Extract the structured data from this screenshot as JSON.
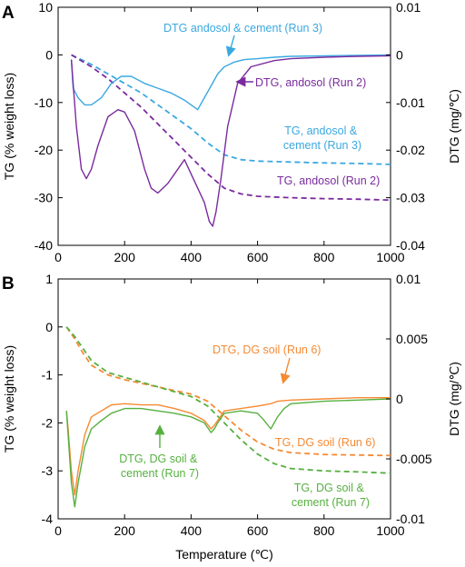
{
  "chart_data": [
    {
      "panel_label": "A",
      "type": "line",
      "xlabel": "",
      "ylabel_left": "TG (% weight loss)",
      "ylabel_right": "DTG (mg/℃)",
      "xlim": [
        0,
        1000
      ],
      "ylim_left": [
        -40,
        10
      ],
      "ylim_right": [
        -0.04,
        0.01
      ],
      "xticks": [
        "0",
        "200",
        "400",
        "600",
        "800",
        "1000"
      ],
      "yticks_left": [
        "10",
        "0",
        "-10",
        "-20",
        "-30",
        "-40"
      ],
      "yticks_right": [
        "0.01",
        "0",
        "-0.01",
        "-0.02",
        "-0.03",
        "-0.04"
      ],
      "grid": false,
      "colors": {
        "blue": "#3aa8e0",
        "purple": "#7a2b9e"
      },
      "annotations": [
        {
          "lines": [
            "DTG andosol & cement (Run 3)"
          ],
          "color": "#3aa8e0"
        },
        {
          "lines": [
            "DTG, andosol (Run 2)"
          ],
          "color": "#7a2b9e"
        },
        {
          "lines": [
            "TG,  andosol  &",
            "cement (Run 3)"
          ],
          "color": "#3aa8e0"
        },
        {
          "lines": [
            "TG, andosol (Run 2)"
          ],
          "color": "#7a2b9e"
        }
      ],
      "series": [
        {
          "kind": "TG",
          "axis": "left",
          "style": "dashed",
          "color": "#3aa8e0",
          "x": [
            40,
            100,
            150,
            200,
            250,
            300,
            350,
            400,
            450,
            500,
            550,
            600,
            700,
            800,
            900,
            1000
          ],
          "y": [
            0,
            -2,
            -4,
            -6,
            -8,
            -10.5,
            -13,
            -15.5,
            -18.5,
            -21,
            -22,
            -22.3,
            -22.5,
            -22.7,
            -22.8,
            -23
          ]
        },
        {
          "kind": "TG",
          "axis": "left",
          "style": "dashed",
          "color": "#7a2b9e",
          "x": [
            40,
            100,
            150,
            200,
            250,
            300,
            350,
            400,
            450,
            500,
            550,
            600,
            700,
            800,
            900,
            1000
          ],
          "y": [
            0,
            -2.5,
            -5,
            -8,
            -11,
            -14.5,
            -18,
            -21.5,
            -25,
            -28,
            -29.2,
            -29.7,
            -30,
            -30.2,
            -30.3,
            -30.5
          ]
        },
        {
          "kind": "DTG",
          "axis": "right",
          "style": "solid",
          "color": "#3aa8e0",
          "x": [
            40,
            45,
            60,
            80,
            100,
            130,
            160,
            190,
            220,
            260,
            300,
            340,
            380,
            420,
            440,
            460,
            480,
            500,
            530,
            560,
            600,
            650,
            700,
            800,
            900,
            1000
          ],
          "y": [
            -0.001,
            -0.007,
            -0.009,
            -0.0105,
            -0.0105,
            -0.009,
            -0.006,
            -0.0045,
            -0.0045,
            -0.006,
            -0.007,
            -0.008,
            -0.0095,
            -0.0115,
            -0.009,
            -0.0065,
            -0.004,
            -0.0025,
            -0.0015,
            -0.001,
            -0.0008,
            -0.0005,
            -0.0003,
            -0.0002,
            -0.0001,
            0
          ]
        },
        {
          "kind": "DTG",
          "axis": "right",
          "style": "solid",
          "color": "#7a2b9e",
          "x": [
            40,
            45,
            55,
            70,
            85,
            100,
            120,
            150,
            180,
            200,
            230,
            260,
            280,
            300,
            330,
            360,
            380,
            400,
            420,
            440,
            455,
            465,
            475,
            490,
            510,
            540,
            580,
            650,
            700,
            800,
            900,
            1000
          ],
          "y": [
            -0.001,
            -0.006,
            -0.015,
            -0.024,
            -0.026,
            -0.024,
            -0.019,
            -0.013,
            -0.0115,
            -0.012,
            -0.016,
            -0.024,
            -0.028,
            -0.029,
            -0.027,
            -0.024,
            -0.022,
            -0.025,
            -0.028,
            -0.031,
            -0.035,
            -0.036,
            -0.033,
            -0.026,
            -0.015,
            -0.006,
            -0.0025,
            -0.0012,
            -0.0008,
            -0.0005,
            -0.0003,
            -0.0002
          ]
        }
      ]
    },
    {
      "panel_label": "B",
      "type": "line",
      "xlabel": "Temperature (℃)",
      "ylabel_left": "TG (% weight loss)",
      "ylabel_right": "DTG (mg/℃)",
      "xlim": [
        0,
        1000
      ],
      "ylim_left": [
        -4,
        1
      ],
      "ylim_right": [
        -0.01,
        0.01
      ],
      "xticks": [
        "0",
        "200",
        "400",
        "600",
        "800",
        "1000"
      ],
      "yticks_left": [
        "1",
        "0",
        "-1",
        "-2",
        "-3",
        "-4"
      ],
      "yticks_right": [
        "0.01",
        "0.005",
        "0",
        "-0.005",
        "-0.01"
      ],
      "grid": false,
      "colors": {
        "orange": "#f58a33",
        "green": "#56b03f"
      },
      "annotations": [
        {
          "lines": [
            "DTG, DG soil (Run 6)"
          ],
          "color": "#f58a33"
        },
        {
          "lines": [
            "TG, DG soil (Run 6)"
          ],
          "color": "#f58a33"
        },
        {
          "lines": [
            "DTG,  DG  soil  &",
            "cement (Run 7)"
          ],
          "color": "#56b03f"
        },
        {
          "lines": [
            "TG,  DG  soil  &",
            "cement (Run 7)"
          ],
          "color": "#56b03f"
        }
      ],
      "series": [
        {
          "kind": "TG",
          "axis": "left",
          "style": "dashed",
          "color": "#f58a33",
          "x": [
            25,
            50,
            75,
            100,
            150,
            200,
            300,
            400,
            450,
            500,
            550,
            600,
            650,
            700,
            800,
            900,
            1000
          ],
          "y": [
            0,
            -0.25,
            -0.55,
            -0.8,
            -1.0,
            -1.1,
            -1.25,
            -1.4,
            -1.55,
            -1.85,
            -2.15,
            -2.4,
            -2.55,
            -2.62,
            -2.66,
            -2.67,
            -2.68
          ]
        },
        {
          "kind": "TG",
          "axis": "left",
          "style": "dashed",
          "color": "#56b03f",
          "x": [
            25,
            50,
            75,
            100,
            150,
            200,
            300,
            400,
            450,
            500,
            550,
            600,
            650,
            700,
            800,
            900,
            1000
          ],
          "y": [
            0,
            -0.2,
            -0.45,
            -0.7,
            -0.95,
            -1.05,
            -1.25,
            -1.45,
            -1.65,
            -2.0,
            -2.35,
            -2.65,
            -2.85,
            -2.95,
            -3.0,
            -3.02,
            -3.05
          ]
        },
        {
          "kind": "DTG",
          "axis": "right",
          "style": "solid",
          "color": "#f58a33",
          "x": [
            25,
            30,
            40,
            50,
            60,
            80,
            100,
            130,
            160,
            200,
            250,
            300,
            350,
            400,
            440,
            460,
            470,
            480,
            500,
            550,
            600,
            640,
            660,
            700,
            800,
            900,
            1000
          ],
          "y": [
            -0.001,
            -0.0025,
            -0.006,
            -0.008,
            -0.006,
            -0.003,
            -0.0015,
            -0.001,
            -0.0005,
            -0.0004,
            -0.0005,
            -0.0005,
            -0.0008,
            -0.0012,
            -0.0018,
            -0.0025,
            -0.0022,
            -0.0018,
            -0.001,
            -0.0008,
            -0.0006,
            -0.0004,
            -0.0002,
            -0.0001,
            0,
            0.0001,
            0.0001
          ]
        },
        {
          "kind": "DTG",
          "axis": "right",
          "style": "solid",
          "color": "#56b03f",
          "x": [
            25,
            30,
            40,
            50,
            60,
            80,
            100,
            130,
            160,
            200,
            250,
            300,
            350,
            400,
            440,
            460,
            470,
            480,
            500,
            550,
            600,
            620,
            640,
            660,
            680,
            700,
            800,
            900,
            1000
          ],
          "y": [
            -0.001,
            -0.003,
            -0.007,
            -0.009,
            -0.007,
            -0.004,
            -0.0025,
            -0.0018,
            -0.0012,
            -0.0008,
            -0.0008,
            -0.001,
            -0.0012,
            -0.0015,
            -0.002,
            -0.0028,
            -0.0025,
            -0.002,
            -0.0012,
            -0.001,
            -0.0012,
            -0.0018,
            -0.0025,
            -0.0015,
            -0.0008,
            -0.0004,
            -0.0002,
            -0.0001,
            0
          ]
        }
      ]
    }
  ]
}
